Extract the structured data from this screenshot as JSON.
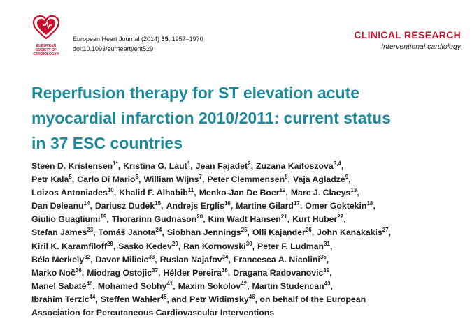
{
  "logo": {
    "lines": [
      "EUROPEAN",
      "SOCIETY OF",
      "CARDIOLOGY®"
    ]
  },
  "citation": {
    "journal": "European Heart Journal (2014) ",
    "volume": "35",
    "pages": ", 1957–1970",
    "doi": "doi:10.1093/eurheartj/eht529"
  },
  "section": {
    "title": "CLINICAL RESEARCH",
    "subtitle": "Interventional cardiology"
  },
  "title": [
    "Reperfusion therapy for ST elevation acute",
    "myocardial infarction 2010/2011: current status",
    "in 37 ESC countries"
  ],
  "authors": [
    [
      {
        "name": "Steen D. Kristensen",
        "sup": "1*",
        "after": ","
      },
      {
        "name": "Kristina G. Laut",
        "sup": "1",
        "after": ","
      },
      {
        "name": "Jean Fajadet",
        "sup": "2",
        "after": ","
      },
      {
        "name": "Zuzana Kaifoszova",
        "sup": "3,4",
        "after": ","
      }
    ],
    [
      {
        "name": "Petr Kala",
        "sup": "5",
        "after": ","
      },
      {
        "name": "Carlo Di Mario",
        "sup": "6",
        "after": ","
      },
      {
        "name": "William Wijns",
        "sup": "7",
        "after": ","
      },
      {
        "name": "Peter Clemmensen",
        "sup": "8",
        "after": ","
      },
      {
        "name": "Vaja Agladze",
        "sup": "9",
        "after": ","
      }
    ],
    [
      {
        "name": "Loizos Antoniades",
        "sup": "10",
        "after": ","
      },
      {
        "name": "Khalid F. Alhabib",
        "sup": "11",
        "after": ","
      },
      {
        "name": "Menko-Jan De Boer",
        "sup": "12",
        "after": ","
      },
      {
        "name": "Marc J. Claeys",
        "sup": "13",
        "after": ","
      }
    ],
    [
      {
        "name": "Dan Deleanu",
        "sup": "14",
        "after": ","
      },
      {
        "name": "Dariusz Dudek",
        "sup": "15",
        "after": ","
      },
      {
        "name": "Andrejs Erglis",
        "sup": "16",
        "after": ","
      },
      {
        "name": "Martine Gilard",
        "sup": "17",
        "after": ","
      },
      {
        "name": "Omer Goktekin",
        "sup": "18",
        "after": ","
      }
    ],
    [
      {
        "name": "Giulio Guagliumi",
        "sup": "19",
        "after": ","
      },
      {
        "name": "Thorarinn Gudnason",
        "sup": "20",
        "after": ","
      },
      {
        "name": "Kim Wadt Hansen",
        "sup": "21",
        "after": ","
      },
      {
        "name": "Kurt Huber",
        "sup": "22",
        "after": ","
      }
    ],
    [
      {
        "name": "Stefan James",
        "sup": "23",
        "after": ","
      },
      {
        "name": "Tomáš Janota",
        "sup": "24",
        "after": ","
      },
      {
        "name": "Siobhan Jennings",
        "sup": "25",
        "after": ","
      },
      {
        "name": "Olli Kajander",
        "sup": "26",
        "after": ","
      },
      {
        "name": "John Kanakakis",
        "sup": "27",
        "after": ","
      }
    ],
    [
      {
        "name": "Kiril K. Karamfiloff",
        "sup": "28",
        "after": ","
      },
      {
        "name": "Sasko Kedev",
        "sup": "29",
        "after": ","
      },
      {
        "name": "Ran Kornowski",
        "sup": "30",
        "after": ","
      },
      {
        "name": "Peter F. Ludman",
        "sup": "31",
        "after": ","
      }
    ],
    [
      {
        "name": "Béla Merkely",
        "sup": "32",
        "after": ","
      },
      {
        "name": "Davor Milicic",
        "sup": "33",
        "after": ","
      },
      {
        "name": "Ruslan Najafov",
        "sup": "34",
        "after": ","
      },
      {
        "name": "Francesca A. Nicolini",
        "sup": "35",
        "after": ","
      }
    ],
    [
      {
        "name": "Marko Noč",
        "sup": "36",
        "after": ","
      },
      {
        "name": "Miodrag Ostojic",
        "sup": "37",
        "after": ","
      },
      {
        "name": "Hélder Pereira",
        "sup": "38",
        "after": ","
      },
      {
        "name": "Dragana Radovanovic",
        "sup": "39",
        "after": ","
      }
    ],
    [
      {
        "name": "Manel Sabaté",
        "sup": "40",
        "after": ","
      },
      {
        "name": "Mohamed Sobhy",
        "sup": "41",
        "after": ","
      },
      {
        "name": "Maxim Sokolov",
        "sup": "42",
        "after": ","
      },
      {
        "name": "Martin Studencan",
        "sup": "43",
        "after": ","
      }
    ],
    [
      {
        "name": "Ibrahim Terzic",
        "sup": "44",
        "after": ","
      },
      {
        "name": "Steffen Wahler",
        "sup": "45",
        "after": ", and"
      },
      {
        "name": "Petr Widimsky",
        "sup": "46",
        "after": ", on behalf of the European"
      }
    ],
    [
      {
        "name": "Association for Percutaneous Cardiovascular Interventions"
      }
    ]
  ]
}
